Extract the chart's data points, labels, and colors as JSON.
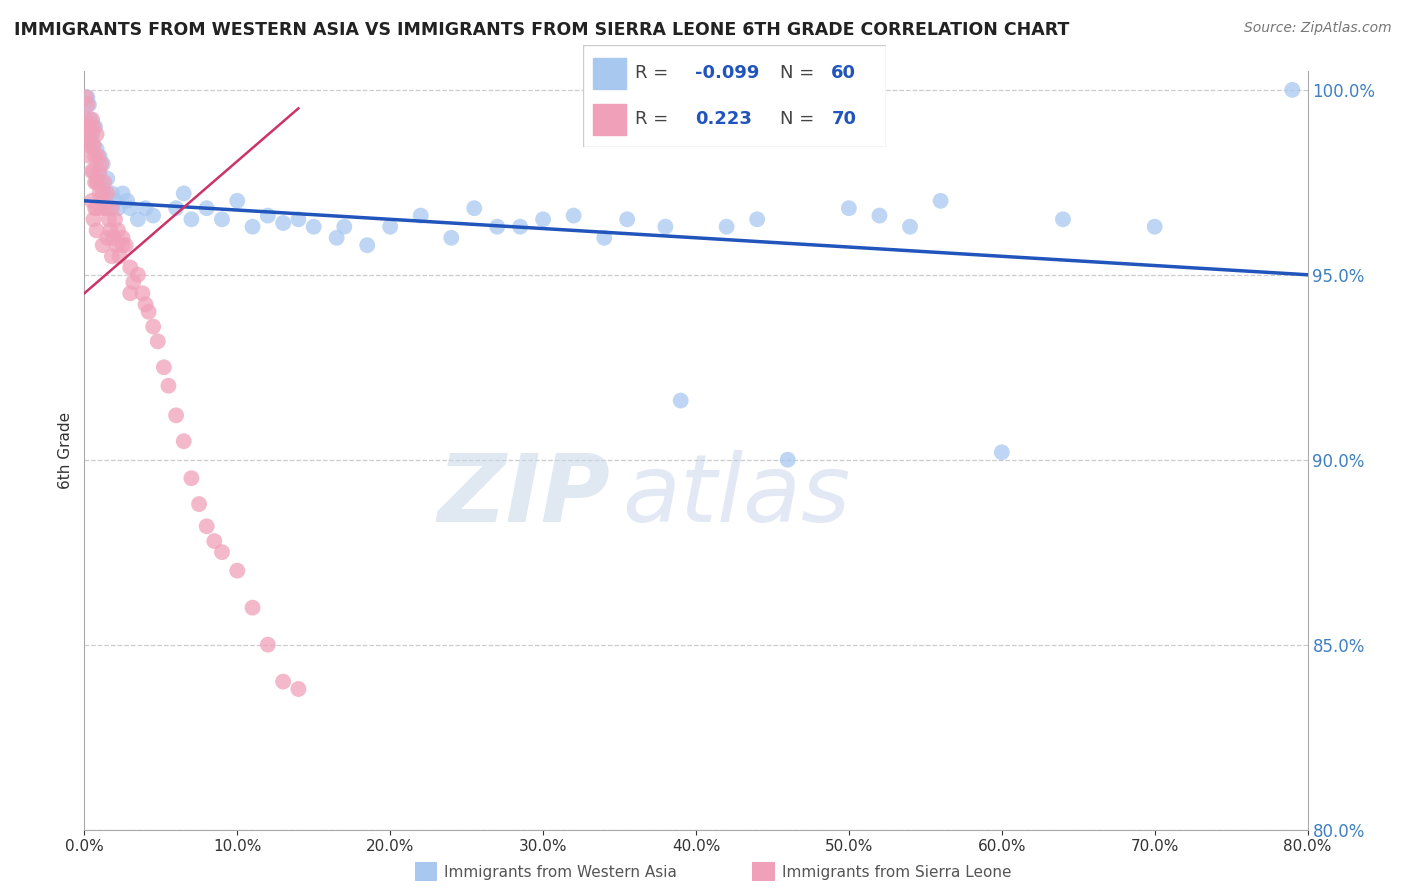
{
  "title": "IMMIGRANTS FROM WESTERN ASIA VS IMMIGRANTS FROM SIERRA LEONE 6TH GRADE CORRELATION CHART",
  "source": "Source: ZipAtlas.com",
  "ylabel": "6th Grade",
  "series1_label": "Immigrants from Western Asia",
  "series2_label": "Immigrants from Sierra Leone",
  "series1_color": "#a8c8f0",
  "series2_color": "#f0a0b8",
  "series1_line_color": "#2255bb",
  "series2_line_color": "#cc3366",
  "R1": -0.099,
  "N1": 60,
  "R2": 0.223,
  "N2": 70,
  "xlim": [
    0.0,
    0.8
  ],
  "ylim": [
    0.8,
    1.005
  ],
  "yticks": [
    0.8,
    0.85,
    0.9,
    0.95,
    1.0
  ],
  "xticks": [
    0.0,
    0.1,
    0.2,
    0.3,
    0.4,
    0.5,
    0.6,
    0.7,
    0.8
  ],
  "watermark_zip": "ZIP",
  "watermark_atlas": "atlas",
  "series1_x": [
    0.002,
    0.003,
    0.004,
    0.005,
    0.006,
    0.007,
    0.008,
    0.009,
    0.01,
    0.011,
    0.012,
    0.013,
    0.015,
    0.016,
    0.018,
    0.02,
    0.022,
    0.025,
    0.028,
    0.03,
    0.035,
    0.04,
    0.045,
    0.06,
    0.065,
    0.07,
    0.08,
    0.09,
    0.1,
    0.11,
    0.12,
    0.13,
    0.14,
    0.15,
    0.165,
    0.17,
    0.185,
    0.2,
    0.22,
    0.24,
    0.255,
    0.27,
    0.285,
    0.3,
    0.32,
    0.34,
    0.355,
    0.38,
    0.39,
    0.42,
    0.44,
    0.46,
    0.5,
    0.52,
    0.54,
    0.56,
    0.6,
    0.64,
    0.7,
    0.79
  ],
  "series1_y": [
    0.998,
    0.996,
    0.992,
    0.988,
    0.985,
    0.99,
    0.984,
    0.978,
    0.982,
    0.975,
    0.98,
    0.972,
    0.976,
    0.968,
    0.972,
    0.97,
    0.968,
    0.972,
    0.97,
    0.968,
    0.965,
    0.968,
    0.966,
    0.968,
    0.972,
    0.965,
    0.968,
    0.965,
    0.97,
    0.963,
    0.966,
    0.964,
    0.965,
    0.963,
    0.96,
    0.963,
    0.958,
    0.963,
    0.966,
    0.96,
    0.968,
    0.963,
    0.963,
    0.965,
    0.966,
    0.96,
    0.965,
    0.963,
    0.916,
    0.963,
    0.965,
    0.9,
    0.968,
    0.966,
    0.963,
    0.97,
    0.902,
    0.965,
    0.963,
    1.0
  ],
  "series2_x": [
    0.001,
    0.001,
    0.002,
    0.002,
    0.003,
    0.003,
    0.004,
    0.004,
    0.005,
    0.005,
    0.005,
    0.006,
    0.006,
    0.006,
    0.007,
    0.007,
    0.008,
    0.008,
    0.008,
    0.009,
    0.009,
    0.01,
    0.01,
    0.011,
    0.011,
    0.012,
    0.013,
    0.014,
    0.015,
    0.016,
    0.017,
    0.018,
    0.019,
    0.02,
    0.021,
    0.022,
    0.023,
    0.025,
    0.027,
    0.03,
    0.032,
    0.035,
    0.038,
    0.04,
    0.042,
    0.045,
    0.048,
    0.052,
    0.055,
    0.06,
    0.065,
    0.07,
    0.075,
    0.08,
    0.085,
    0.09,
    0.1,
    0.11,
    0.12,
    0.13,
    0.14,
    0.005,
    0.006,
    0.007,
    0.008,
    0.012,
    0.015,
    0.018,
    0.025,
    0.03
  ],
  "series2_y": [
    0.998,
    0.992,
    0.996,
    0.988,
    0.99,
    0.985,
    0.988,
    0.982,
    0.985,
    0.978,
    0.992,
    0.985,
    0.978,
    0.99,
    0.982,
    0.975,
    0.988,
    0.975,
    0.968,
    0.975,
    0.982,
    0.978,
    0.972,
    0.98,
    0.968,
    0.972,
    0.975,
    0.968,
    0.972,
    0.965,
    0.962,
    0.968,
    0.96,
    0.965,
    0.958,
    0.962,
    0.955,
    0.96,
    0.958,
    0.952,
    0.948,
    0.95,
    0.945,
    0.942,
    0.94,
    0.936,
    0.932,
    0.925,
    0.92,
    0.912,
    0.905,
    0.895,
    0.888,
    0.882,
    0.878,
    0.875,
    0.87,
    0.86,
    0.85,
    0.84,
    0.838,
    0.97,
    0.965,
    0.968,
    0.962,
    0.958,
    0.96,
    0.955,
    0.958,
    0.945
  ]
}
